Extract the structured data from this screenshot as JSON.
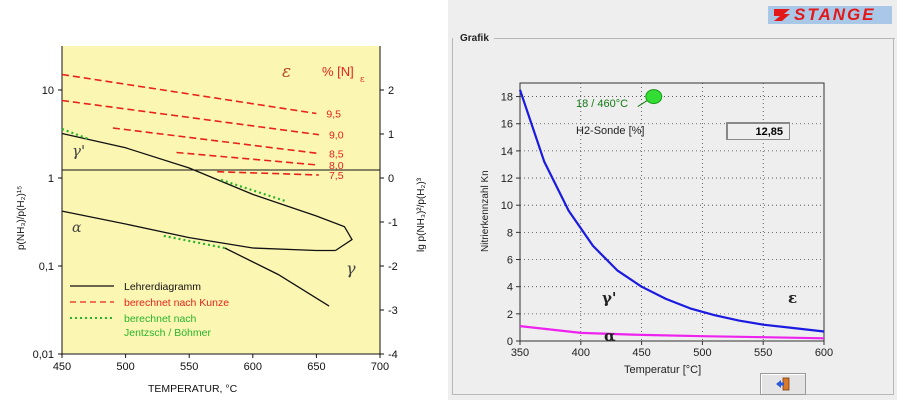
{
  "left_chart": {
    "legend": {
      "teacher": "Lehrerdiagramm",
      "kunze": "berechnet nach Kunze",
      "jentzsch_line1": "berechnet nach",
      "jentzsch_line2": "Jentzsch / Böhmer"
    },
    "colors": {
      "background": "#fcf6b3",
      "kunze": "#e8231a",
      "jentzsch": "#27b52a",
      "teacher": "#111111"
    },
    "phase_labels": {
      "epsilon": "ε",
      "gamma_prime": "γ'",
      "alpha": "α",
      "gamma": "γ"
    },
    "nitrogen_header": "% [N]",
    "nitrogen_subscript": "ε",
    "xlabel": "TEMPERATUR, °C",
    "ylabel_left": "p(NH₃)/p(H₂)¹⁵",
    "ylabel_right": "lg p(NH₃)²/p(H₂)³",
    "x_ticks": [
      "450",
      "500",
      "550",
      "600",
      "650",
      "700"
    ],
    "y_left_ticks": [
      "10",
      "1",
      "0,1",
      "0,01"
    ],
    "y_right_ticks": [
      "2",
      "1",
      "0",
      "-1",
      "-2",
      "-3",
      "-4"
    ],
    "n_labels": [
      "9,5",
      "9,0",
      "8,5",
      "8,0",
      "7,5"
    ]
  },
  "right_panel": {
    "brand": "STANGE",
    "group_title": "Grafik",
    "annotation": "18 / 460°C",
    "h2_label": "H2-Sonde [%]",
    "h2_value": "12,85",
    "phase_labels": {
      "gamma_prime": "γ'",
      "epsilon": "ε",
      "alpha": "α"
    },
    "exit_icon": "exit-door-icon",
    "colors": {
      "curve_main": "#1a1ae0",
      "curve_alpha": "#ee22ee",
      "marker": "#33dd33"
    }
  },
  "chart_data": [
    {
      "type": "line",
      "title": "",
      "xlabel": "TEMPERATUR, °C",
      "ylabel": "p(NH₃)/p(H₂)¹⁵",
      "xlim": [
        450,
        700
      ],
      "ylim": [
        0.01,
        31.6
      ],
      "y_scale": "log",
      "series": [
        {
          "name": "berechnet nach Kunze",
          "x": [
            450,
            650
          ],
          "y": [
            15.0,
            5.4
          ]
        },
        {
          "name": "berechnet nach Kunze",
          "x": [
            450,
            652
          ],
          "y": [
            7.6,
            3.1
          ]
        },
        {
          "name": "berechnet nach Kunze",
          "x": [
            490,
            652
          ],
          "y": [
            3.7,
            1.9
          ]
        },
        {
          "name": "berechnet nach Kunze",
          "x": [
            540,
            652
          ],
          "y": [
            1.95,
            1.4
          ]
        },
        {
          "name": "berechnet nach Kunze",
          "x": [
            572,
            652
          ],
          "y": [
            1.18,
            1.08
          ]
        },
        {
          "name": "Lehrerdiagramm",
          "x": [
            450,
            500,
            550,
            600,
            650,
            672,
            678,
            665
          ],
          "y": [
            3.2,
            2.2,
            1.3,
            0.65,
            0.37,
            0.28,
            0.2,
            0.15
          ]
        },
        {
          "name": "Lehrerdiagramm",
          "x": [
            450,
            500,
            550,
            600,
            650,
            665
          ],
          "y": [
            0.42,
            0.3,
            0.21,
            0.16,
            0.15,
            0.15
          ]
        },
        {
          "name": "Lehrerdiagramm",
          "x": [
            578,
            620,
            660
          ],
          "y": [
            0.16,
            0.08,
            0.035
          ]
        },
        {
          "name": "berechnet nach Jentzsch / Böhmer",
          "x": [
            450,
            470
          ],
          "y": [
            3.6,
            2.8
          ]
        },
        {
          "name": "berechnet nach Jentzsch / Böhmer",
          "x": [
            575,
            625
          ],
          "y": [
            0.95,
            0.55
          ]
        },
        {
          "name": "berechnet nach Jentzsch / Böhmer",
          "x": [
            530,
            578
          ],
          "y": [
            0.22,
            0.16
          ]
        }
      ],
      "y_right_ticks": [
        2,
        1,
        0,
        -1,
        -2,
        -3,
        -4
      ]
    },
    {
      "type": "line",
      "title": "Grafik",
      "xlabel": "Temperatur [°C]",
      "ylabel": "Nitrierkennzahl Kn",
      "xlim": [
        350,
        600
      ],
      "ylim": [
        0,
        19
      ],
      "x_ticks": [
        350,
        400,
        450,
        500,
        550,
        600
      ],
      "y_ticks": [
        0,
        2,
        4,
        6,
        8,
        10,
        12,
        14,
        16,
        18
      ],
      "grid": true,
      "series": [
        {
          "name": "γ'/ε",
          "x": [
            350,
            370,
            390,
            410,
            430,
            450,
            470,
            490,
            510,
            530,
            550,
            570,
            600
          ],
          "y": [
            18.5,
            13.2,
            9.6,
            7.0,
            5.2,
            4.0,
            3.1,
            2.4,
            1.9,
            1.5,
            1.2,
            1.0,
            0.7
          ]
        },
        {
          "name": "α",
          "x": [
            350,
            400,
            450,
            500,
            550,
            600
          ],
          "y": [
            1.1,
            0.6,
            0.45,
            0.35,
            0.28,
            0.2
          ]
        }
      ],
      "marker": {
        "x": 460,
        "y": 18
      }
    }
  ]
}
